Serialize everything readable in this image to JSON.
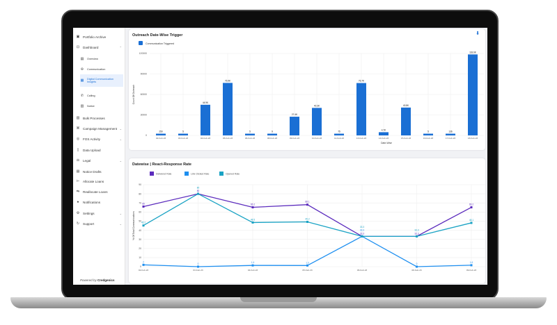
{
  "sidebar": {
    "items": [
      {
        "label": "Portfolio Archive",
        "icon": "archive-icon"
      },
      {
        "label": "Dashboard",
        "icon": "dashboard-icon",
        "expanded": true
      },
      {
        "label": "Overview",
        "icon": "overview-icon",
        "sub": true
      },
      {
        "label": "Communication",
        "icon": "communication-icon",
        "sub": true
      },
      {
        "label": "Digital Communication Insights",
        "icon": "insights-icon",
        "sub": true,
        "active": true
      },
      {
        "label": "Calling",
        "icon": "phone-icon",
        "sub": true
      },
      {
        "label": "Notice",
        "icon": "notice-icon",
        "sub": true
      },
      {
        "label": "Bulk Processes",
        "icon": "trash-icon"
      },
      {
        "label": "Campaign Management",
        "icon": "campaign-icon",
        "chevron": true
      },
      {
        "label": "FOS Activity",
        "icon": "location-icon",
        "chevron": true
      },
      {
        "label": "Data Upload",
        "icon": "upload-icon"
      },
      {
        "label": "Legal",
        "icon": "legal-icon",
        "chevron": true
      },
      {
        "label": "Notice Drafts",
        "icon": "draft-icon"
      },
      {
        "label": "Allocate Loans",
        "icon": "allocate-icon"
      },
      {
        "label": "Reallocate Loans",
        "icon": "reallocate-icon"
      },
      {
        "label": "Notifications",
        "icon": "bell-icon"
      },
      {
        "label": "Settings",
        "icon": "gear-icon",
        "chevron": true
      },
      {
        "label": "Support",
        "icon": "support-icon",
        "chevron": true
      }
    ],
    "powered_by": "Powered by",
    "brand": "Credgenics"
  },
  "colors": {
    "bar": "#1a6fd4",
    "delivered": "#5b2bbd",
    "link_clicked": "#1e8ff0",
    "opened": "#1aa3c4"
  },
  "chart_data": [
    {
      "type": "bar",
      "title": "Outreach Date-Wise Trigger",
      "xlabel": "Date-Wise",
      "ylabel": "Count Of Outreach",
      "ylim": [
        0,
        120000
      ],
      "yticks": [
        0,
        30000,
        60000,
        90000,
        120000
      ],
      "legend": "top-left",
      "grid": true,
      "series": [
        {
          "name": "Communication Triggered"
        }
      ],
      "categories": [
        "02-Feb-23",
        "03-Feb-23",
        "04-Feb-23",
        "05-Feb-23",
        "06-Feb-23",
        "08-Feb-23",
        "09-Feb-23",
        "10-Feb-23",
        "11-Feb-23",
        "13-Feb-23",
        "14-Feb-23",
        "15-Feb-23",
        "16-Feb-23",
        "17-Feb-23",
        "18-Feb-23"
      ],
      "values": [
        250,
        5,
        44900,
        76900,
        5,
        9,
        27400,
        40300,
        75,
        76700,
        4700,
        40800,
        5,
        136,
        118600
      ],
      "labels": [
        "250",
        "5",
        "44.9K",
        "76.9K",
        "5",
        "9",
        "27.4K",
        "40.3K",
        "75",
        "76.7K",
        "4.7K",
        "40.8K",
        "5",
        "136",
        "118.6K"
      ]
    },
    {
      "type": "line",
      "title": "Datewise | React-Response Rate",
      "ylabel": "% Of Total Communications",
      "ylim": [
        0,
        90
      ],
      "yticks": [
        0,
        10,
        20,
        30,
        40,
        50,
        60,
        70,
        80,
        90
      ],
      "legend": "top-left",
      "grid": true,
      "categories": [
        "02-Feb-23",
        "03-Feb-23",
        "04-Feb-23",
        "05-Feb-23",
        "06-Feb-23",
        "08-Feb-23",
        "09-Feb-23"
      ],
      "series": [
        {
          "name": "Delivered Rate",
          "values": [
            66,
            80,
            65.2,
            68.1,
            33.3,
            33.3,
            65.2
          ]
        },
        {
          "name": "Link Clicked Rate",
          "values": [
            2,
            0,
            1.4,
            1.3,
            33.3,
            0,
            1.6
          ]
        },
        {
          "name": "Opened Rate",
          "values": [
            45.2,
            80,
            48.5,
            49.2,
            33.3,
            33.3,
            48.1
          ]
        }
      ]
    }
  ]
}
